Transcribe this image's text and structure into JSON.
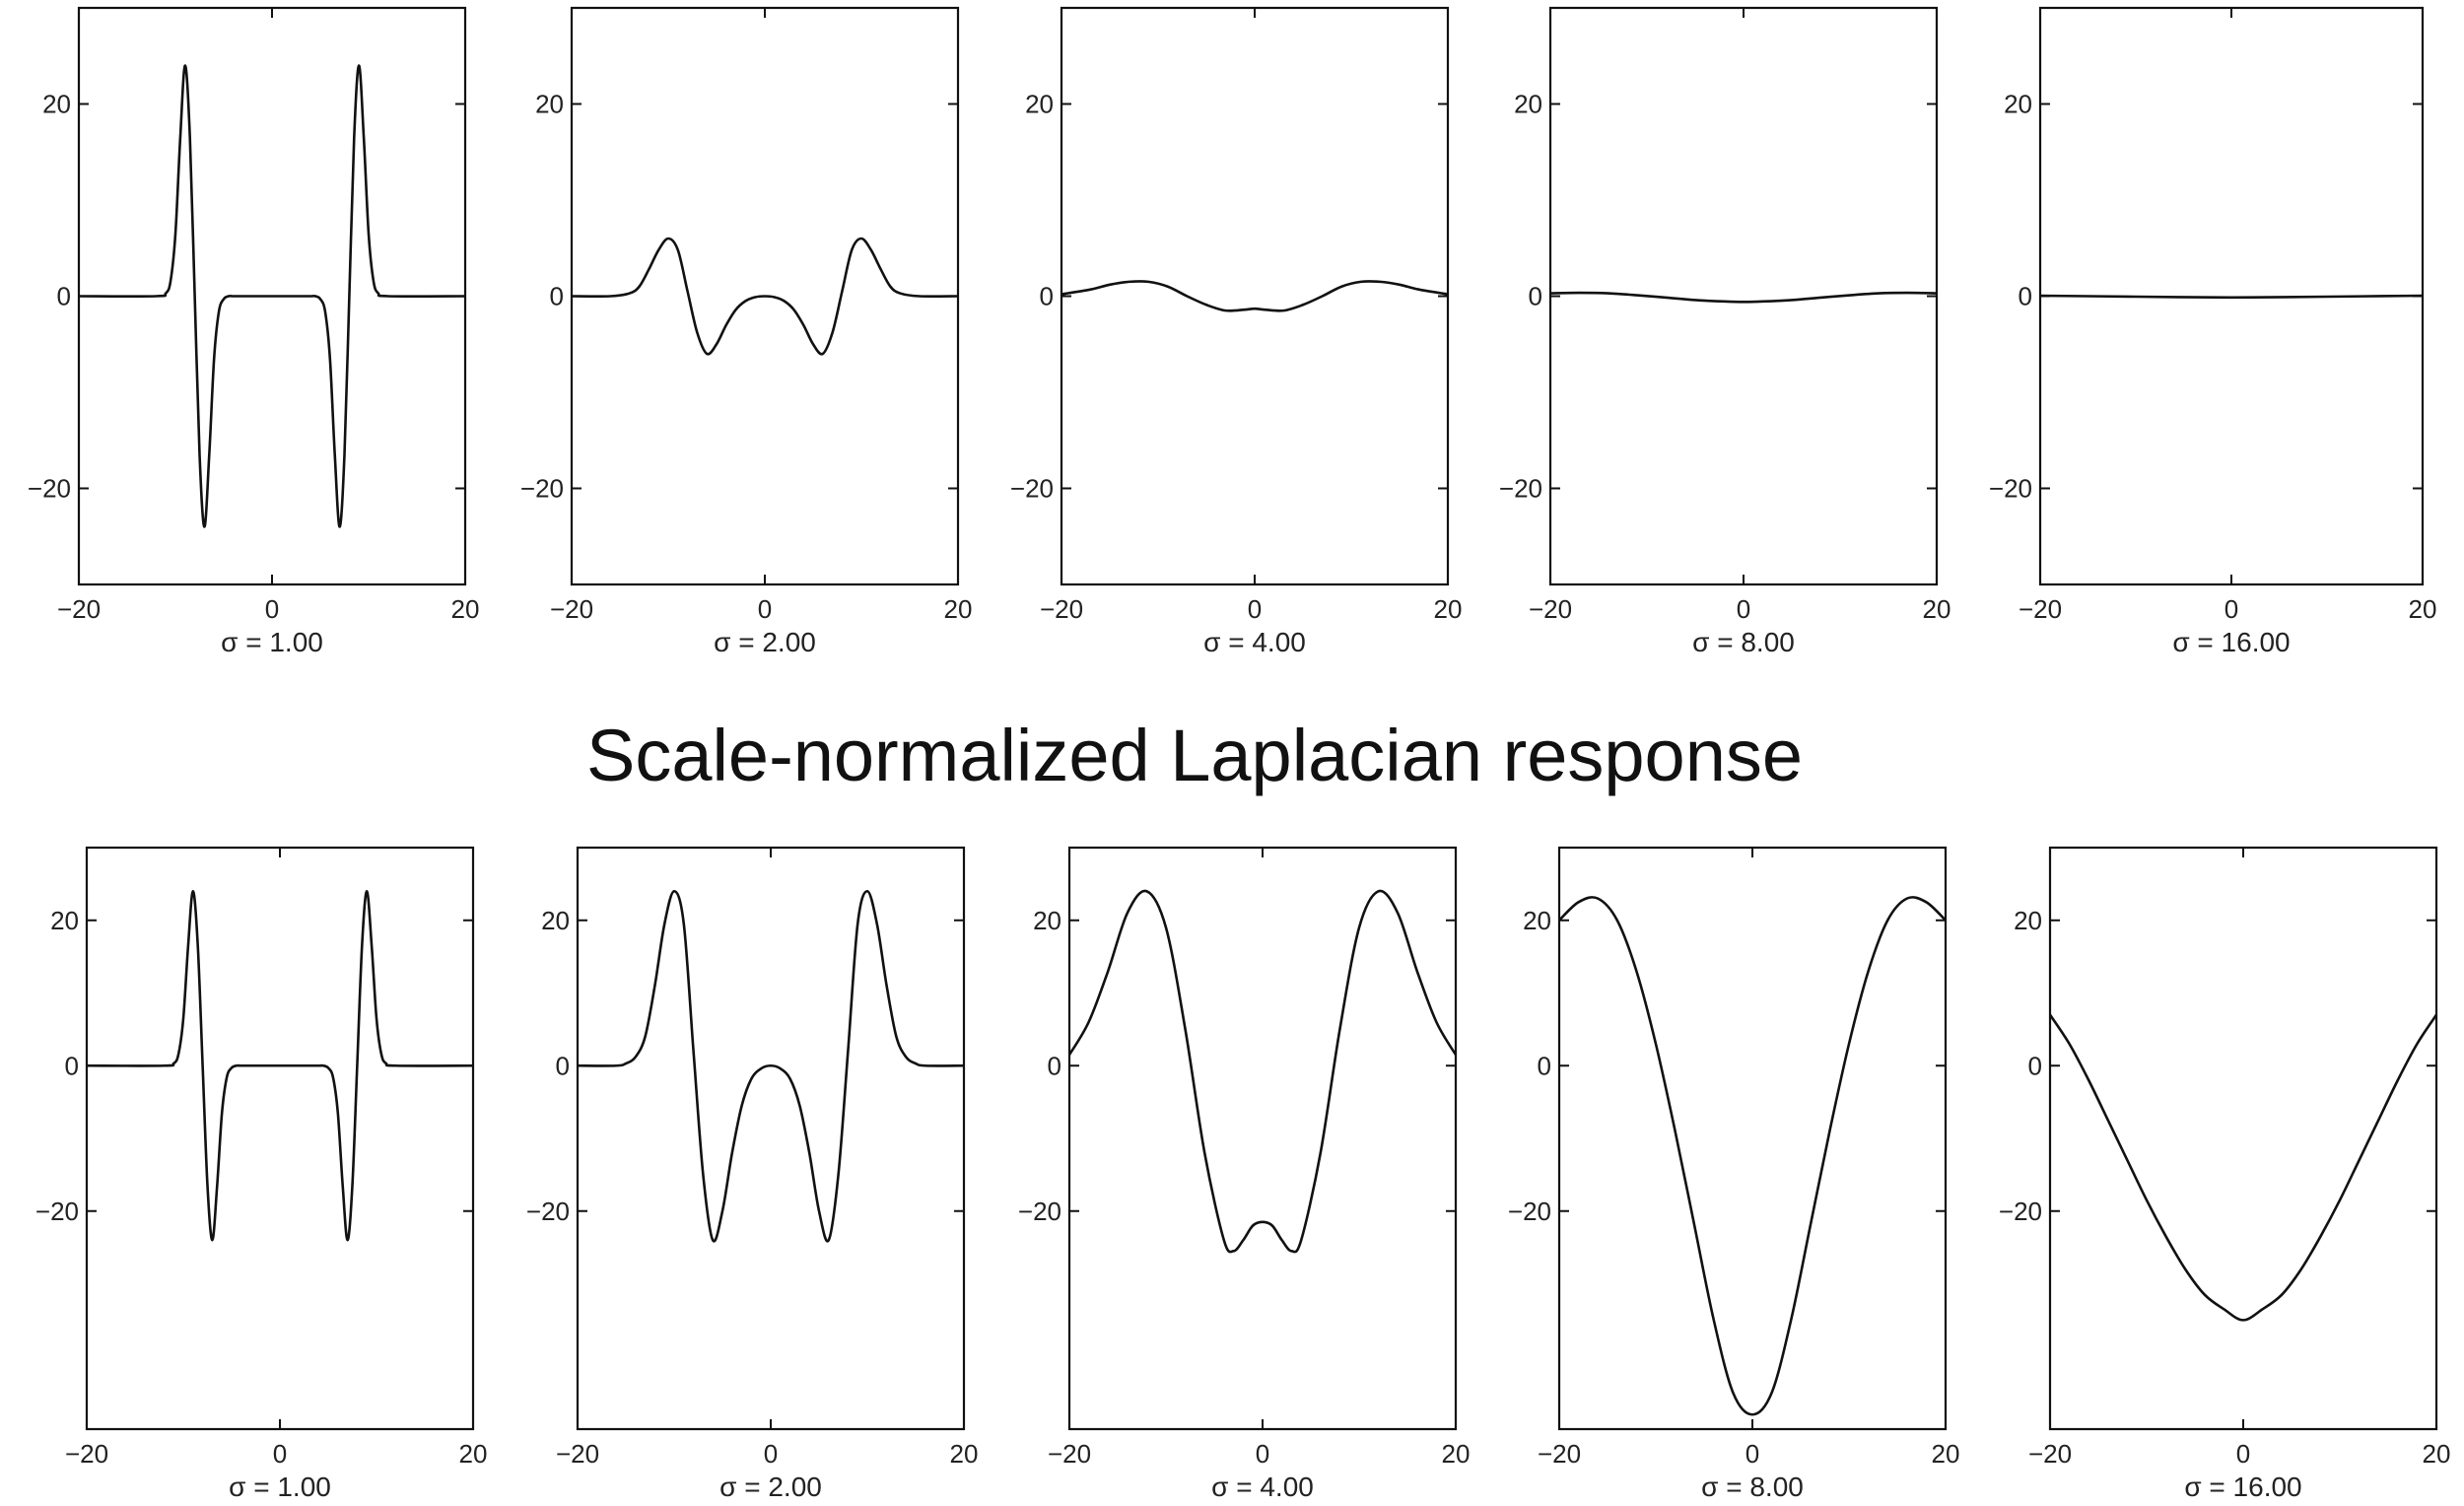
{
  "middle_title": "Scale-normalized Laplacian response",
  "chart_data": [
    {
      "type": "line",
      "row": "top",
      "subtitle": "σ = 1.00",
      "title": "",
      "xlabel": "",
      "ylabel": "",
      "xlim": [
        -20,
        20
      ],
      "ylim": [
        -30,
        30
      ],
      "xticks": [
        -20,
        0,
        20
      ],
      "yticks": [
        -20,
        0,
        20
      ],
      "grid": false,
      "series": [
        {
          "x": [
            -20,
            -12,
            -11,
            -10.5,
            -10,
            -9.5,
            -9,
            -8.5,
            -8,
            -7.5,
            -7,
            -6.5,
            -6,
            -5.5,
            -5,
            -4.5,
            -4,
            -3,
            0,
            3,
            4,
            4.5,
            5,
            5.5,
            6,
            6.5,
            7,
            7.5,
            8,
            8.5,
            9,
            9.5,
            10,
            10.5,
            11,
            12,
            20
          ],
          "y": [
            0,
            0,
            0.3,
            1.6,
            6.5,
            16.5,
            24,
            16.5,
            0,
            -16.5,
            -24,
            -16.5,
            -6.5,
            -1.6,
            -0.3,
            0,
            0,
            0,
            0,
            0,
            0,
            0,
            -0.3,
            -1.6,
            -6.5,
            -16.5,
            -24,
            -16.5,
            0,
            16.5,
            24,
            16.5,
            6.5,
            1.6,
            0.3,
            0,
            0
          ]
        }
      ]
    },
    {
      "type": "line",
      "row": "top",
      "subtitle": "σ = 2.00",
      "title": "",
      "xlabel": "",
      "ylabel": "",
      "xlim": [
        -20,
        20
      ],
      "ylim": [
        -30,
        30
      ],
      "xticks": [
        -20,
        0,
        20
      ],
      "yticks": [
        -20,
        0,
        20
      ],
      "grid": false,
      "series": [
        {
          "x": [
            -20,
            -16,
            -14,
            -13,
            -12,
            -11,
            -10,
            -9,
            -8,
            -7,
            -6,
            -5,
            -4,
            -3,
            -2,
            -1,
            0,
            1,
            2,
            3,
            4,
            5,
            6,
            7,
            8,
            9,
            10,
            11,
            12,
            13,
            14,
            16,
            20
          ],
          "y": [
            0,
            0,
            0.3,
            1,
            2.8,
            4.8,
            6,
            4.8,
            0.5,
            -3.8,
            -6,
            -5,
            -3,
            -1.4,
            -0.5,
            -0.1,
            0,
            -0.1,
            -0.5,
            -1.4,
            -3,
            -5,
            -6,
            -3.8,
            0.5,
            4.8,
            6,
            4.8,
            2.8,
            1,
            0.3,
            0,
            0
          ]
        }
      ]
    },
    {
      "type": "line",
      "row": "top",
      "subtitle": "σ = 4.00",
      "title": "",
      "xlabel": "",
      "ylabel": "",
      "xlim": [
        -20,
        20
      ],
      "ylim": [
        -30,
        30
      ],
      "xticks": [
        -20,
        0,
        20
      ],
      "yticks": [
        -20,
        0,
        20
      ],
      "grid": false,
      "series": [
        {
          "x": [
            -20,
            -17,
            -15,
            -13,
            -11,
            -9,
            -7,
            -5,
            -3,
            -1,
            0,
            1,
            3,
            5,
            7,
            9,
            11,
            13,
            15,
            17,
            20
          ],
          "y": [
            0.2,
            0.7,
            1.2,
            1.5,
            1.5,
            1,
            0,
            -0.9,
            -1.5,
            -1.4,
            -1.3,
            -1.4,
            -1.5,
            -0.9,
            0,
            1,
            1.5,
            1.5,
            1.2,
            0.7,
            0.2
          ]
        }
      ]
    },
    {
      "type": "line",
      "row": "top",
      "subtitle": "σ = 8.00",
      "title": "",
      "xlabel": "",
      "ylabel": "",
      "xlim": [
        -20,
        20
      ],
      "ylim": [
        -30,
        30
      ],
      "xticks": [
        -20,
        0,
        20
      ],
      "yticks": [
        -20,
        0,
        20
      ],
      "grid": false,
      "series": [
        {
          "x": [
            -20,
            -17,
            -14,
            -11,
            -8,
            -5,
            -2,
            0,
            2,
            5,
            8,
            11,
            14,
            17,
            20
          ],
          "y": [
            0.3,
            0.35,
            0.3,
            0.1,
            -0.15,
            -0.4,
            -0.55,
            -0.6,
            -0.55,
            -0.4,
            -0.15,
            0.1,
            0.3,
            0.35,
            0.3
          ]
        }
      ]
    },
    {
      "type": "line",
      "row": "top",
      "subtitle": "σ = 16.00",
      "title": "",
      "xlabel": "",
      "ylabel": "",
      "xlim": [
        -20,
        20
      ],
      "ylim": [
        -30,
        30
      ],
      "xticks": [
        -20,
        0,
        20
      ],
      "yticks": [
        -20,
        0,
        20
      ],
      "grid": false,
      "series": [
        {
          "x": [
            -20,
            -10,
            0,
            10,
            20
          ],
          "y": [
            0.05,
            -0.05,
            -0.14,
            -0.05,
            0.05
          ]
        }
      ]
    },
    {
      "type": "line",
      "row": "bottom",
      "subtitle": "σ = 1.00",
      "title": "",
      "xlabel": "",
      "ylabel": "",
      "xlim": [
        -20,
        20
      ],
      "ylim": [
        -50,
        30
      ],
      "xticks": [
        -20,
        0,
        20
      ],
      "yticks": [
        -20,
        0,
        20
      ],
      "grid": false,
      "series": [
        {
          "x": [
            -20,
            -12,
            -11,
            -10.5,
            -10,
            -9.5,
            -9,
            -8.5,
            -8,
            -7.5,
            -7,
            -6.5,
            -6,
            -5.5,
            -5,
            -4.5,
            -4,
            -3,
            0,
            3,
            4,
            4.5,
            5,
            5.5,
            6,
            6.5,
            7,
            7.5,
            8,
            8.5,
            9,
            9.5,
            10,
            10.5,
            11,
            12,
            20
          ],
          "y": [
            0,
            0,
            0.3,
            1.6,
            6.5,
            16.5,
            24,
            16.5,
            0,
            -16.5,
            -24,
            -16.5,
            -6.5,
            -1.6,
            -0.3,
            0,
            0,
            0,
            0,
            0,
            0,
            0,
            -0.3,
            -1.6,
            -6.5,
            -16.5,
            -24,
            -16.5,
            0,
            16.5,
            24,
            16.5,
            6.5,
            1.6,
            0.3,
            0,
            0
          ]
        }
      ]
    },
    {
      "type": "line",
      "row": "bottom",
      "subtitle": "σ = 2.00",
      "title": "",
      "xlabel": "",
      "ylabel": "",
      "xlim": [
        -20,
        20
      ],
      "ylim": [
        -50,
        30
      ],
      "xticks": [
        -20,
        0,
        20
      ],
      "yticks": [
        -20,
        0,
        20
      ],
      "grid": false,
      "series": [
        {
          "x": [
            -20,
            -16,
            -15,
            -14,
            -13,
            -12,
            -11,
            -10,
            -9,
            -8,
            -7,
            -6,
            -5,
            -4,
            -3,
            -2,
            -1,
            0,
            1,
            2,
            3,
            4,
            5,
            6,
            7,
            8,
            9,
            10,
            11,
            12,
            13,
            14,
            15,
            16,
            20
          ],
          "y": [
            0,
            0,
            0.3,
            1.2,
            4,
            11,
            19.5,
            24,
            19.5,
            2,
            -15,
            -24,
            -20,
            -12,
            -5.5,
            -1.8,
            -0.4,
            0,
            -0.4,
            -1.8,
            -5.5,
            -12,
            -20,
            -24,
            -15,
            2,
            19.5,
            24,
            19.5,
            11,
            4,
            1.2,
            0.3,
            0,
            0
          ]
        }
      ]
    },
    {
      "type": "line",
      "row": "bottom",
      "subtitle": "σ = 4.00",
      "title": "",
      "xlabel": "",
      "ylabel": "",
      "xlim": [
        -20,
        20
      ],
      "ylim": [
        -50,
        30
      ],
      "xticks": [
        -20,
        0,
        20
      ],
      "yticks": [
        -20,
        0,
        20
      ],
      "grid": false,
      "series": [
        {
          "x": [
            -20,
            -18,
            -16,
            -14,
            -12,
            -10,
            -8,
            -6,
            -4,
            -3,
            -2,
            -1,
            0,
            1,
            2,
            3,
            4,
            6,
            8,
            10,
            12,
            14,
            16,
            18,
            20
          ],
          "y": [
            1.5,
            6,
            13,
            21,
            24,
            19,
            5,
            -12,
            -24,
            -25.5,
            -24,
            -22,
            -21.5,
            -22,
            -24,
            -25.5,
            -24,
            -12,
            5,
            19,
            24,
            21,
            13,
            6,
            1.5
          ]
        }
      ]
    },
    {
      "type": "line",
      "row": "bottom",
      "subtitle": "σ = 8.00",
      "title": "",
      "xlabel": "",
      "ylabel": "",
      "xlim": [
        -20,
        20
      ],
      "ylim": [
        -50,
        30
      ],
      "xticks": [
        -20,
        0,
        20
      ],
      "yticks": [
        -20,
        0,
        20
      ],
      "grid": false,
      "series": [
        {
          "x": [
            -20,
            -18,
            -16,
            -14,
            -12,
            -10,
            -8,
            -6,
            -4,
            -2,
            0,
            2,
            4,
            6,
            8,
            10,
            12,
            14,
            16,
            18,
            20
          ],
          "y": [
            20,
            22.5,
            23,
            20,
            13,
            3,
            -9,
            -22,
            -35,
            -45,
            -48,
            -45,
            -35,
            -22,
            -9,
            3,
            13,
            20,
            23,
            22.5,
            20
          ]
        }
      ]
    },
    {
      "type": "line",
      "row": "bottom",
      "subtitle": "σ = 16.00",
      "title": "",
      "xlabel": "",
      "ylabel": "",
      "xlim": [
        -20,
        20
      ],
      "ylim": [
        -50,
        30
      ],
      "xticks": [
        -20,
        0,
        20
      ],
      "yticks": [
        -20,
        0,
        20
      ],
      "grid": false,
      "series": [
        {
          "x": [
            -20,
            -18,
            -16,
            -14,
            -12,
            -10,
            -8,
            -6,
            -4,
            -2,
            0,
            2,
            4,
            6,
            8,
            10,
            12,
            14,
            16,
            18,
            20
          ],
          "y": [
            7,
            3,
            -2,
            -7.5,
            -13,
            -18.5,
            -23.5,
            -28,
            -31.5,
            -33.5,
            -35,
            -33.5,
            -31.5,
            -28,
            -23.5,
            -18.5,
            -13,
            -7.5,
            -2,
            3,
            7
          ]
        }
      ]
    }
  ]
}
